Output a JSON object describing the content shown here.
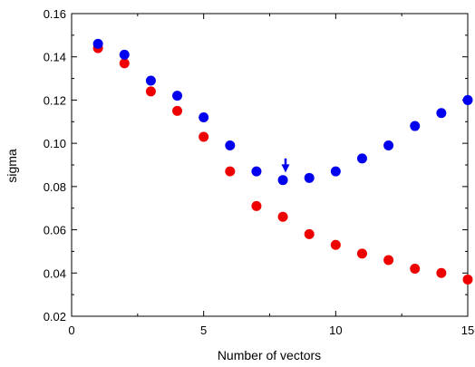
{
  "chart_data": {
    "type": "scatter",
    "title": "",
    "xlabel": "Number of vectors",
    "ylabel": "sigma",
    "xlim": [
      0,
      15
    ],
    "ylim": [
      0.02,
      0.16
    ],
    "x_ticks": [
      0,
      5,
      10,
      15
    ],
    "x_tick_labels": [
      "0",
      "5",
      "10",
      "15"
    ],
    "y_ticks": [
      0.02,
      0.04,
      0.06,
      0.08,
      0.1,
      0.12,
      0.14,
      0.16
    ],
    "y_tick_labels": [
      "0.02",
      "0.04",
      "0.06",
      "0.08",
      "0.10",
      "0.12",
      "0.14",
      "0.16"
    ],
    "grid": false,
    "legend": "none",
    "series": [
      {
        "color": "#0000ee",
        "x": [
          1,
          2,
          3,
          4,
          5,
          6,
          7,
          8,
          9,
          10,
          11,
          12,
          13,
          14,
          15
        ],
        "y": [
          0.146,
          0.141,
          0.129,
          0.122,
          0.112,
          0.099,
          0.087,
          0.083,
          0.084,
          0.087,
          0.093,
          0.099,
          0.108,
          0.114,
          0.12
        ]
      },
      {
        "color": "#ee0000",
        "x": [
          1,
          2,
          3,
          4,
          5,
          6,
          7,
          8,
          9,
          10,
          11,
          12,
          13,
          14,
          15
        ],
        "y": [
          0.144,
          0.137,
          0.124,
          0.115,
          0.103,
          0.087,
          0.071,
          0.066,
          0.058,
          0.053,
          0.049,
          0.046,
          0.042,
          0.04,
          0.037
        ]
      }
    ],
    "annotations": [
      {
        "type": "arrow",
        "color": "#0000ee",
        "x": 8.1,
        "y_from": 0.093,
        "y_to": 0.0865
      }
    ]
  }
}
